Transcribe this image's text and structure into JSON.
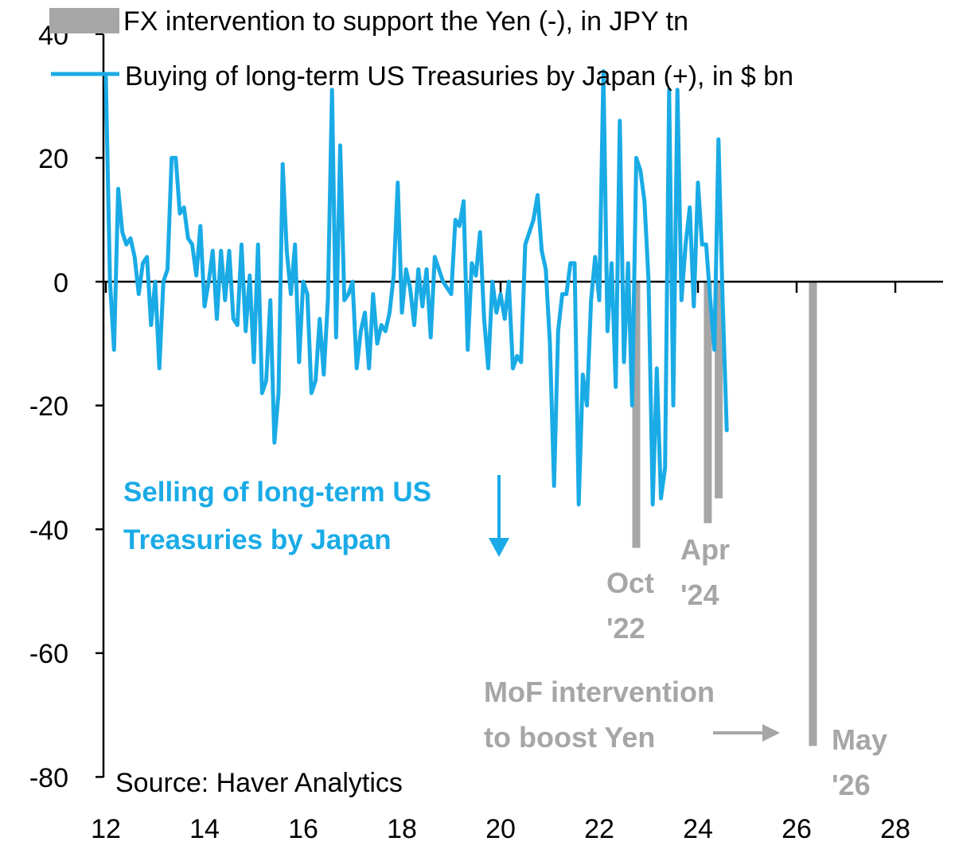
{
  "chart_data": {
    "type": "line",
    "legend": [
      {
        "label": "FX intervention to support the Yen (-), in JPY tn",
        "color": "#A6A6A6",
        "kind": "bar"
      },
      {
        "label": "Buying of long-term US Treasuries by Japan (+), in $ bn",
        "color": "#1AABE6",
        "kind": "line"
      }
    ],
    "yticks": [
      40,
      20,
      0,
      -20,
      -40,
      -60,
      -80
    ],
    "xticks": [
      12,
      14,
      16,
      18,
      20,
      22,
      24,
      26,
      28
    ],
    "ylim": [
      -80,
      40
    ],
    "xlim": [
      12,
      29
    ],
    "source": "Source: Haver Analytics",
    "series": [
      {
        "name": "Buying of long-term US Treasuries by Japan (+), in $ bn",
        "color": "#1AABE6",
        "start": 12.0,
        "step": 0.0833333,
        "values": [
          33,
          0,
          -11,
          15,
          8,
          6,
          7,
          4,
          -2,
          3,
          4,
          -7,
          0,
          -14,
          0,
          2,
          20,
          20,
          11,
          12,
          7,
          6,
          1,
          9,
          -4,
          0,
          5,
          -6,
          5,
          -3,
          5,
          -6,
          -7,
          6,
          -8,
          1,
          -13,
          6,
          -18,
          -16,
          -3,
          -26,
          -18,
          19,
          5,
          -2,
          6,
          -13,
          0,
          -2,
          -18,
          -16,
          -6,
          -15,
          -3,
          31,
          -9,
          22,
          -3,
          -2,
          0,
          -14,
          -8,
          -5,
          -14,
          -2,
          -10,
          -7,
          -8,
          -5,
          1,
          16,
          -5,
          2,
          -1,
          -7,
          2,
          -4,
          2,
          -9,
          4,
          2,
          0,
          -1,
          -2,
          10,
          9,
          13,
          -11,
          3,
          1,
          8,
          -6,
          -14,
          0,
          -5,
          -2,
          -6,
          0,
          -14,
          -12,
          -13,
          6,
          8,
          10,
          14,
          5,
          2,
          -10,
          -33,
          -8,
          -2,
          -2,
          3,
          3,
          -36,
          -15,
          -20,
          -3,
          4,
          -3,
          34,
          -8,
          3,
          -17,
          26,
          -13,
          3,
          -20,
          20,
          18,
          13,
          0,
          -36,
          -14,
          -35,
          -30,
          31,
          -20,
          31,
          -3,
          6,
          12,
          -4,
          16,
          6,
          6,
          -3,
          -11,
          23,
          -3,
          -24
        ]
      },
      {
        "name": "FX intervention to support the Yen (-), in JPY tn",
        "color": "#A6A6A6",
        "bars": [
          {
            "x": 22.75,
            "value": -43
          },
          {
            "x": 24.2,
            "value": -39
          },
          {
            "x": 24.42,
            "value": -35
          },
          {
            "x": 26.33,
            "value": -75
          }
        ]
      }
    ],
    "annotations": {
      "selling": [
        "Selling of long-term US",
        "Treasuries by Japan"
      ],
      "oct22": [
        "Oct",
        "'22"
      ],
      "apr24": [
        "Apr",
        "'24"
      ],
      "mof": [
        "MoF intervention",
        "to boost Yen"
      ],
      "may26": [
        "May",
        "'26"
      ]
    }
  }
}
